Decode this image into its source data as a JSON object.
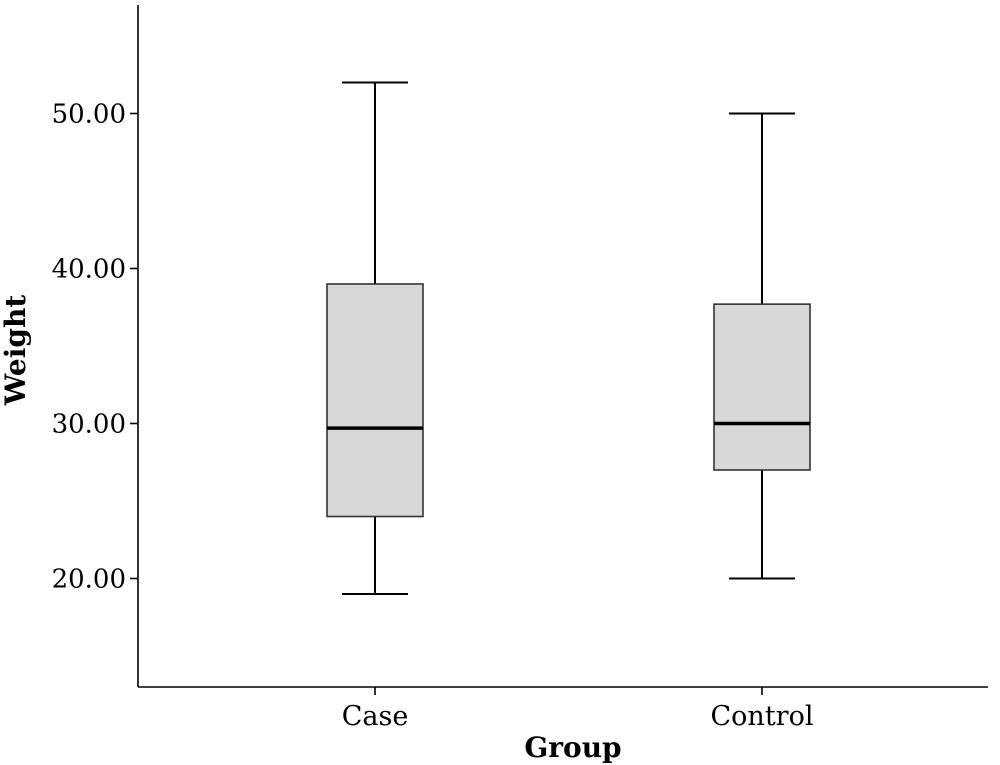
{
  "chart_data": {
    "type": "boxplot",
    "xlabel": "Group",
    "ylabel": "Weight",
    "categories": [
      "Case",
      "Control"
    ],
    "ylim": [
      13,
      57
    ],
    "yticks": [
      20,
      30,
      40,
      50
    ],
    "ytick_labels": [
      "20.00",
      "30.00",
      "40.00",
      "50.00"
    ],
    "grid": false,
    "box_fill": "#d8d8d8",
    "boxes": [
      {
        "category": "Case",
        "min": 19,
        "q1": 24,
        "median": 29.7,
        "q3": 39,
        "max": 52
      },
      {
        "category": "Control",
        "min": 20,
        "q1": 27,
        "median": 30,
        "q3": 37.7,
        "max": 50
      }
    ]
  }
}
